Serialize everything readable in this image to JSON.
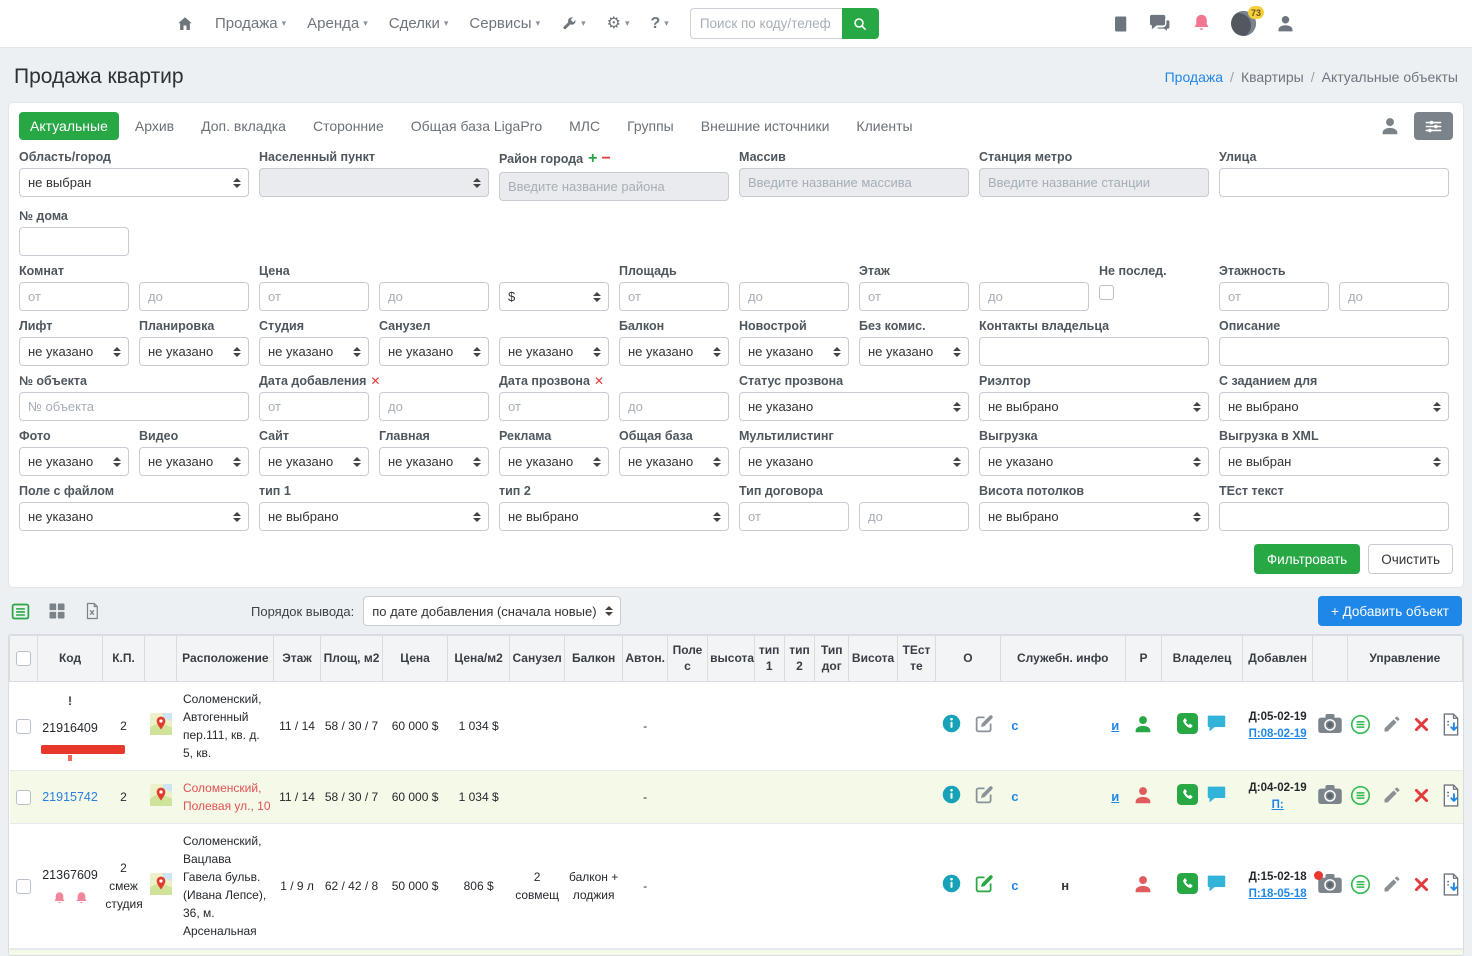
{
  "topnav": {
    "menus": [
      "Продажа",
      "Аренда",
      "Сделки",
      "Сервисы"
    ],
    "search": {
      "placeholder": "Поиск по коду/телеф"
    },
    "notif_badge": "73"
  },
  "page": {
    "title": "Продажа квартир",
    "breadcrumb": [
      "Продажа",
      "Квартиры",
      "Актуальные объекты"
    ]
  },
  "tabs": {
    "items": [
      "Актуальные",
      "Архив",
      "Доп. вкладка",
      "Сторонние",
      "Общая база LigaPro",
      "МЛС",
      "Группы",
      "Внешние источники",
      "Клиенты"
    ],
    "active": 0
  },
  "filters": {
    "filter_button": "Фильтровать",
    "clear_button": "Очистить",
    "rows": [
      [
        {
          "label": "Область/город",
          "type": "select",
          "value": "не выбран",
          "span": 2
        },
        {
          "label": "Населенный пункт",
          "type": "select",
          "value": "",
          "span": 2,
          "disabled": true
        },
        {
          "label": "Район города",
          "type": "text",
          "placeholder": "Введите название района",
          "span": 2,
          "disabled": true,
          "label_icons": "plus-minus"
        },
        {
          "label": "Массив",
          "type": "text",
          "placeholder": "Введите название массива",
          "span": 2,
          "disabled": true
        },
        {
          "label": "Станция метро",
          "type": "text",
          "placeholder": "Введите название станции",
          "span": 2,
          "disabled": true
        },
        {
          "label": "Улица",
          "type": "text",
          "placeholder": "",
          "span": 2
        }
      ],
      [
        {
          "label": "№ дома",
          "type": "text",
          "placeholder": ""
        }
      ],
      [
        {
          "label": "Комнат",
          "type": "text",
          "placeholder": "от"
        },
        {
          "label": "",
          "type": "text",
          "placeholder": "до"
        },
        {
          "label": "Цена",
          "type": "text",
          "placeholder": "от"
        },
        {
          "label": "",
          "type": "text",
          "placeholder": "до"
        },
        {
          "label": "",
          "type": "select",
          "value": "$"
        },
        {
          "label": "Площадь",
          "type": "text",
          "placeholder": "от"
        },
        {
          "label": "",
          "type": "text",
          "placeholder": "до"
        },
        {
          "label": "Этаж",
          "type": "text",
          "placeholder": "от"
        },
        {
          "label": "",
          "type": "text",
          "placeholder": "до"
        },
        {
          "label": "Не послед.",
          "type": "checkbox"
        },
        {
          "label": "Этажность",
          "type": "text",
          "placeholder": "от"
        },
        {
          "label": "",
          "type": "text",
          "placeholder": "до"
        }
      ],
      [
        {
          "label": "Лифт",
          "type": "select",
          "value": "не указано"
        },
        {
          "label": "Планировка",
          "type": "select",
          "value": "не указано"
        },
        {
          "label": "Студия",
          "type": "select",
          "value": "не указано"
        },
        {
          "label": "Санузел",
          "type": "select",
          "value": "не указано"
        },
        {
          "label": "",
          "type": "select",
          "value": "не указано"
        },
        {
          "label": "Балкон",
          "type": "select",
          "value": "не указано"
        },
        {
          "label": "Новострой",
          "type": "select",
          "value": "не указано"
        },
        {
          "label": "Без комис.",
          "type": "select",
          "value": "не указано"
        },
        {
          "label": "Контакты владельца",
          "type": "text",
          "placeholder": "",
          "span": 2
        },
        {
          "label": "Описание",
          "type": "text",
          "placeholder": "",
          "span": 2
        }
      ],
      [
        {
          "label": "№ объекта",
          "type": "text",
          "placeholder": "№ объекта",
          "span": 2
        },
        {
          "label": "Дата добавления",
          "type": "text",
          "placeholder": "от",
          "label_icons": "x"
        },
        {
          "label": "",
          "type": "text",
          "placeholder": "до"
        },
        {
          "label": "Дата прозвона",
          "type": "text",
          "placeholder": "от",
          "label_icons": "x"
        },
        {
          "label": "",
          "type": "text",
          "placeholder": "до"
        },
        {
          "label": "Статус прозвона",
          "type": "select",
          "value": "не указано",
          "span": 2
        },
        {
          "label": "Риэлтор",
          "type": "select",
          "value": "не выбрано",
          "span": 2
        },
        {
          "label": "С заданием для",
          "type": "select",
          "value": "не выбрано",
          "span": 2
        }
      ],
      [
        {
          "label": "Фото",
          "type": "select",
          "value": "не указано"
        },
        {
          "label": "Видео",
          "type": "select",
          "value": "не указано"
        },
        {
          "label": "Сайт",
          "type": "select",
          "value": "не указано"
        },
        {
          "label": "Главная",
          "type": "select",
          "value": "не указано"
        },
        {
          "label": "Реклама",
          "type": "select",
          "value": "не указано"
        },
        {
          "label": "Общая база",
          "type": "select",
          "value": "не указано"
        },
        {
          "label": "Мультилистинг",
          "type": "select",
          "value": "не указано",
          "span": 2
        },
        {
          "label": "Выгрузка",
          "type": "select",
          "value": "не указано",
          "span": 2
        },
        {
          "label": "Выгрузка в XML",
          "type": "select",
          "value": "не выбран",
          "span": 2
        }
      ],
      [
        {
          "label": "Поле с файлом",
          "type": "select",
          "value": "не указано",
          "span": 2
        },
        {
          "label": "тип 1",
          "type": "select",
          "value": "не выбрано",
          "span": 2
        },
        {
          "label": "тип 2",
          "type": "select",
          "value": "не выбрано",
          "span": 2
        },
        {
          "label": "Тип договора",
          "type": "text",
          "placeholder": "от"
        },
        {
          "label": "",
          "type": "text",
          "placeholder": "до"
        },
        {
          "label": "Висота потолков",
          "type": "select",
          "value": "не выбрано",
          "span": 2
        },
        {
          "label": "ТЕст текст",
          "type": "text",
          "placeholder": "",
          "span": 2
        }
      ]
    ]
  },
  "toolbar": {
    "sort_label": "Порядок вывода:",
    "sort_value": "по дате добавления (сначала новые)",
    "add_button": "+ Добавить объект"
  },
  "table": {
    "headers": [
      "",
      "Код",
      "К.П.",
      "",
      "Расположение",
      "Этаж",
      "Площ, м2",
      "Цена",
      "Цена/м2",
      "Санузел",
      "Балкон",
      "Автон.",
      "Поле с",
      "высота",
      "тип 1",
      "тип 2",
      "Тип дог",
      "Висота",
      "ТЕст те",
      "О",
      "Служебн. инфо",
      "Р",
      "Владелец",
      "Добавлен",
      "",
      "Управление"
    ],
    "rows": [
      {
        "warn": "!",
        "code": "21916409",
        "code_link": false,
        "red_marker": true,
        "bells": false,
        "kp": "2",
        "location": "Соломенский, Автогенный пер.111, кв. д. 5, кв.",
        "location_red": false,
        "floor": "11 / 14",
        "area": "58 / 30 / 7",
        "price": "60 000 $",
        "price_m2": "1 034 $",
        "sanuzel": "",
        "balkon": "",
        "auton": "-",
        "edit_green": false,
        "c_flag": "с",
        "n_flag": "",
        "i_flag": "и",
        "owner_green": true,
        "added_d": "Д:05-02-19",
        "added_p": "П:08-02-19",
        "camera_dot": false,
        "row_green": false
      },
      {
        "warn": "",
        "code": "21915742",
        "code_link": true,
        "red_marker": false,
        "bells": false,
        "kp": "2",
        "location": "Соломенский, Полевая ул., 10",
        "location_red": true,
        "floor": "11 / 14",
        "area": "58 / 30 / 7",
        "price": "60 000 $",
        "price_m2": "1 034 $",
        "sanuzel": "",
        "balkon": "",
        "auton": "-",
        "edit_green": false,
        "c_flag": "с",
        "n_flag": "",
        "i_flag": "и",
        "owner_green": false,
        "added_d": "Д:04-02-19",
        "added_p": "П:",
        "camera_dot": false,
        "row_green": true
      },
      {
        "warn": "",
        "code": "21367609",
        "code_link": false,
        "red_marker": false,
        "bells": true,
        "kp": "2 смеж студия",
        "location": "Соломенский, Вацлава Гавела бульв. (Ивана Лепсе), 36, м. Арсенальная",
        "location_red": false,
        "floor": "1 / 9 л",
        "area": "62 / 42 / 8",
        "price": "50 000 $",
        "price_m2": "806 $",
        "sanuzel": "2 совмещ",
        "balkon": "балкон + лоджия",
        "auton": "-",
        "edit_green": true,
        "c_flag": "с",
        "n_flag": "н",
        "i_flag": "",
        "owner_green": false,
        "added_d": "Д:15-02-18",
        "added_p": "П:18-05-18",
        "camera_dot": true,
        "row_green": false
      }
    ]
  }
}
